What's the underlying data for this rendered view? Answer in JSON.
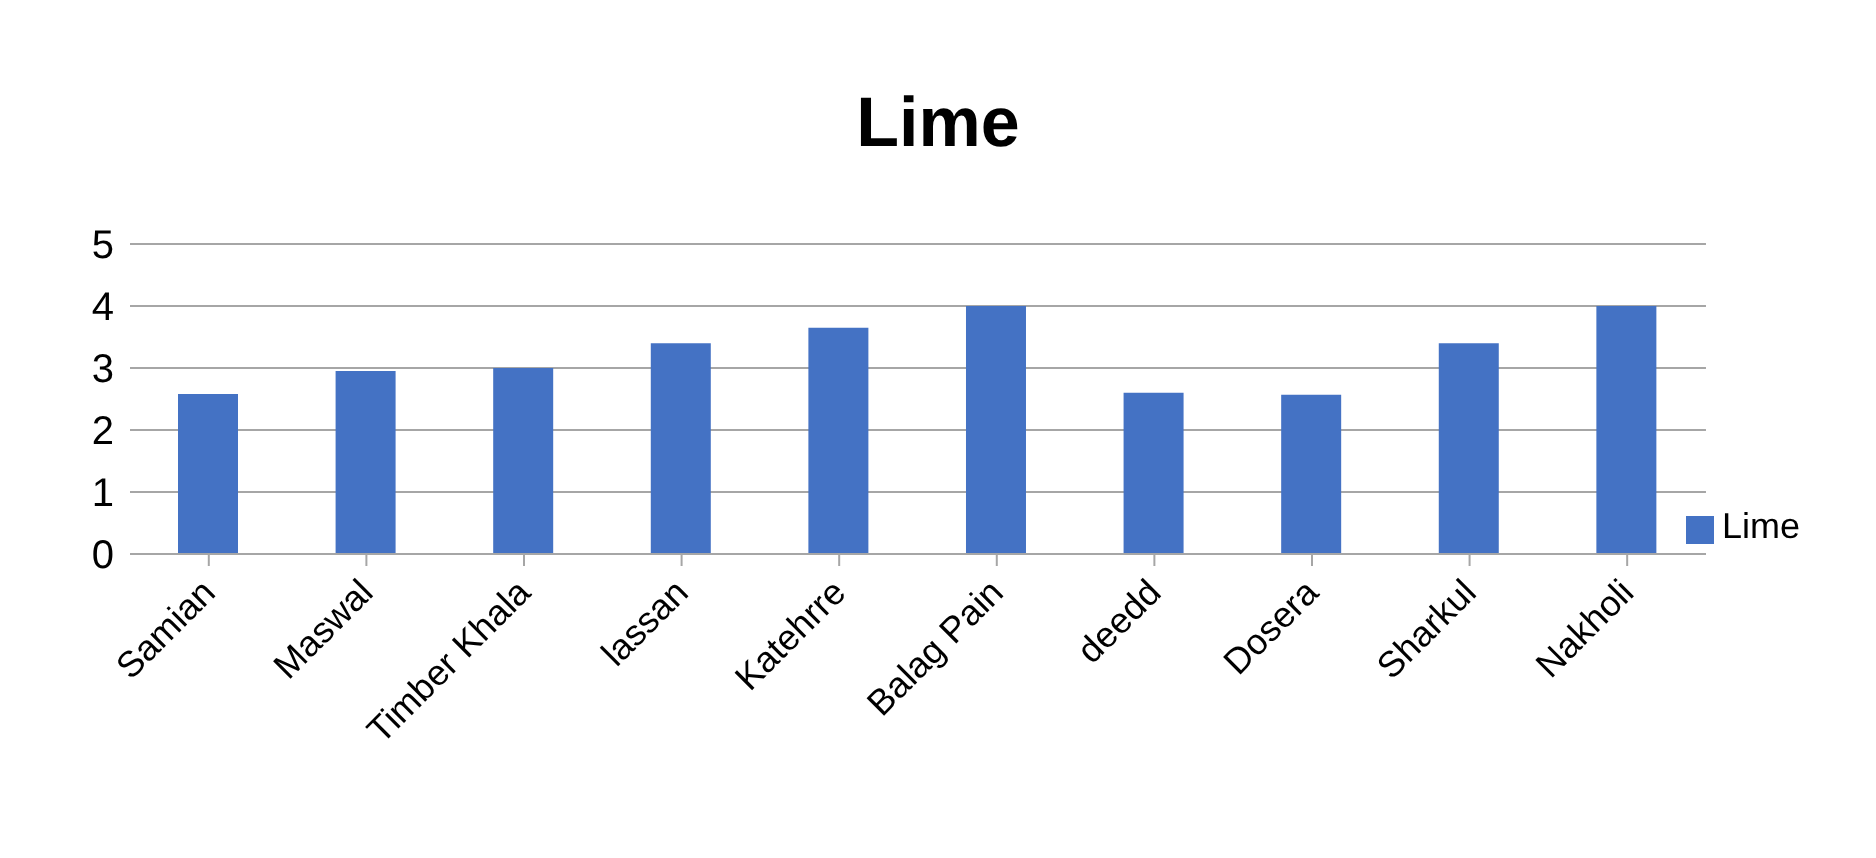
{
  "chart_data": {
    "type": "bar",
    "title": "Lime",
    "categories": [
      "Samian",
      "Maswal",
      "Timber Khala",
      "lassan",
      "Katehrre",
      "Balag Pain",
      "deedd",
      "Dosera",
      "Sharkul",
      "Nakholi"
    ],
    "series": [
      {
        "name": "Lime",
        "color": "#4472c4",
        "values": [
          2.58,
          2.95,
          3.0,
          3.4,
          3.65,
          4.0,
          2.6,
          2.57,
          3.4,
          4.0
        ]
      }
    ],
    "ylim": [
      0,
      5
    ],
    "yticks": [
      0,
      1,
      2,
      3,
      4,
      5
    ],
    "grid": "y",
    "legend": "right"
  }
}
